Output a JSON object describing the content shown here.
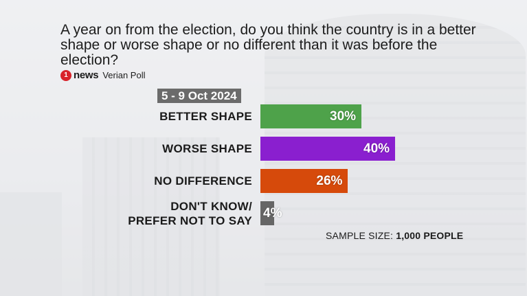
{
  "question": "A year on from the election, do you think the country is in a better shape or worse shape or no different than it was before the election?",
  "brand": {
    "logo_glyph": "1",
    "name": "news",
    "poll": "Verian Poll"
  },
  "date_range": "5 - 9 Oct 2024",
  "sample": {
    "label": "SAMPLE SIZE:",
    "value": "1,000 PEOPLE"
  },
  "chart_data": {
    "type": "bar",
    "orientation": "horizontal",
    "categories": [
      "BETTER SHAPE",
      "WORSE SHAPE",
      "NO DIFFERENCE",
      "DON'T KNOW/\nPREFER NOT TO SAY"
    ],
    "values": [
      30,
      40,
      26,
      4
    ],
    "value_labels": [
      "30%",
      "40%",
      "26%",
      "4%"
    ],
    "colors": [
      "#4ea24a",
      "#8a1fcf",
      "#d64a0b",
      "#666666"
    ],
    "xlim": [
      0,
      100
    ],
    "grid": false,
    "legend": "none"
  }
}
